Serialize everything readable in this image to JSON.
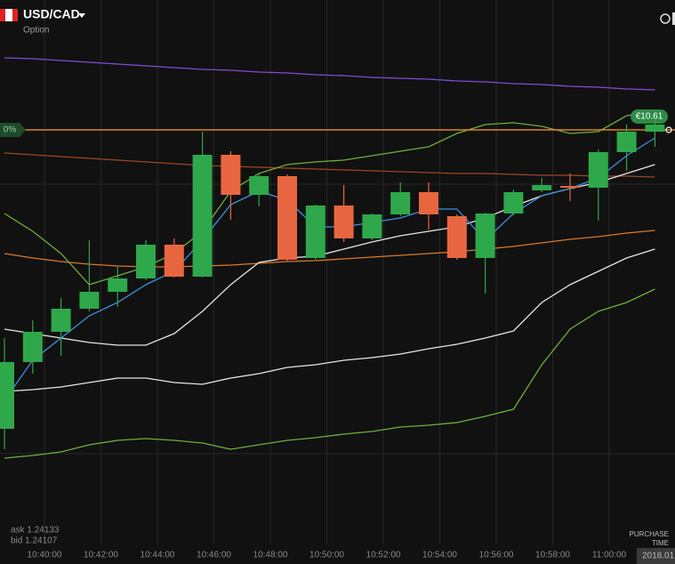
{
  "chart_data": {
    "type": "candlestick",
    "title": "USD/CAD",
    "subtitle": "Option",
    "ylim": [
      1.23635,
      1.2425
    ],
    "open": [
      1.23768,
      1.23843,
      1.23877,
      1.23903,
      1.23922,
      1.23937,
      1.23975,
      1.23939,
      1.24076,
      1.24031,
      1.24052,
      1.2396,
      1.24019,
      1.23982,
      1.24009,
      1.24034,
      1.24007,
      1.2396,
      1.2401,
      1.24036,
      1.24041,
      1.24039,
      1.24079,
      1.24102
    ],
    "high": [
      1.2387,
      1.2389,
      1.23915,
      1.2398,
      1.2395,
      1.2398,
      1.23982,
      1.24102,
      1.2408,
      1.24055,
      1.24054,
      1.2402,
      1.24042,
      1.2401,
      1.24045,
      1.24045,
      1.24009,
      1.24011,
      1.24037,
      1.2405,
      1.24055,
      1.24082,
      1.2411,
      1.24115
    ],
    "low": [
      1.23745,
      1.2383,
      1.2385,
      1.239,
      1.23905,
      1.23935,
      1.23938,
      1.23938,
      1.24003,
      1.24018,
      1.23956,
      1.23958,
      1.23978,
      1.2398,
      1.24007,
      1.23992,
      1.23958,
      1.2392,
      1.24008,
      1.24034,
      1.24024,
      1.24002,
      1.24058,
      1.24085
    ],
    "close": [
      1.23843,
      1.23877,
      1.23903,
      1.23922,
      1.23937,
      1.23975,
      1.23939,
      1.24076,
      1.24031,
      1.24052,
      1.23958,
      1.24019,
      1.23982,
      1.24009,
      1.24034,
      1.24009,
      1.2396,
      1.2401,
      1.24034,
      1.24042,
      1.24039,
      1.24079,
      1.24102,
      1.2411
    ],
    "up_color": "#2ea84a",
    "down_color": "#e8663f",
    "series": [
      {
        "color": "#7b4fd6",
        "values": [
          1.24185,
          1.24184,
          1.24182,
          1.2418,
          1.24178,
          1.24176,
          1.24174,
          1.24172,
          1.24171,
          1.24169,
          1.24168,
          1.24166,
          1.24165,
          1.24163,
          1.24162,
          1.24161,
          1.24159,
          1.24158,
          1.24156,
          1.24155,
          1.24153,
          1.24152,
          1.2415,
          1.24149
        ]
      },
      {
        "color": "#a0461f",
        "values": [
          1.24078,
          1.24076,
          1.24074,
          1.24072,
          1.2407,
          1.24068,
          1.24066,
          1.24064,
          1.24063,
          1.24062,
          1.24061,
          1.2406,
          1.24059,
          1.24058,
          1.24057,
          1.24056,
          1.24055,
          1.24055,
          1.24054,
          1.24053,
          1.24053,
          1.24052,
          1.24052,
          1.24051
        ]
      },
      {
        "color": "#d9792a",
        "values": [
          1.23965,
          1.2396,
          1.23956,
          1.23953,
          1.23951,
          1.2395,
          1.2395,
          1.23951,
          1.23952,
          1.23954,
          1.23956,
          1.23957,
          1.23959,
          1.23961,
          1.23963,
          1.23965,
          1.23967,
          1.2397,
          1.23973,
          1.23977,
          1.23981,
          1.23984,
          1.23988,
          1.23991
        ]
      },
      {
        "color": "#6fae3a",
        "values": [
          1.2401,
          1.2399,
          1.23965,
          1.2393,
          1.2394,
          1.2395,
          1.23965,
          1.2399,
          1.24035,
          1.24055,
          1.24065,
          1.24068,
          1.2407,
          1.24075,
          1.2408,
          1.24085,
          1.241,
          1.2411,
          1.24112,
          1.24108,
          1.241,
          1.24102,
          1.2412,
          1.24125
        ]
      },
      {
        "color": "#e6e6e6",
        "values": [
          1.2388,
          1.23875,
          1.2387,
          1.23865,
          1.23862,
          1.23862,
          1.23875,
          1.239,
          1.2393,
          1.23955,
          1.2396,
          1.23962,
          1.2397,
          1.23978,
          1.23985,
          1.2399,
          1.23995,
          1.24005,
          1.24018,
          1.2403,
          1.24038,
          1.24045,
          1.24055,
          1.24065
        ]
      },
      {
        "color": "#3f8fe0",
        "values": [
          1.238,
          1.23845,
          1.2387,
          1.23895,
          1.2391,
          1.2393,
          1.23945,
          1.2398,
          1.2402,
          1.24035,
          1.24025,
          1.23995,
          1.23995,
          1.24,
          1.24005,
          1.24015,
          1.24015,
          1.2398,
          1.2401,
          1.2403,
          1.24038,
          1.2405,
          1.24075,
          1.24095
        ]
      },
      {
        "color": "#6fae3a",
        "values": [
          1.23735,
          1.23738,
          1.23742,
          1.2375,
          1.23755,
          1.23757,
          1.23755,
          1.23752,
          1.23745,
          1.2375,
          1.23755,
          1.23758,
          1.23762,
          1.23765,
          1.2377,
          1.23772,
          1.23775,
          1.23782,
          1.2379,
          1.2384,
          1.2388,
          1.239,
          1.2391,
          1.23925
        ]
      },
      {
        "color": "#e6e6e6",
        "values": [
          1.2381,
          1.23812,
          1.23815,
          1.2382,
          1.23825,
          1.23825,
          1.2382,
          1.23818,
          1.23825,
          1.2383,
          1.23837,
          1.2384,
          1.23845,
          1.23848,
          1.23852,
          1.23858,
          1.23863,
          1.2387,
          1.23878,
          1.2391,
          1.2393,
          1.23945,
          1.2396,
          1.2397
        ]
      }
    ],
    "level": {
      "value": 1.24104,
      "color": "#d9861e",
      "right_label": "€10.61",
      "left_label": "0%"
    },
    "x_labels": [
      "10:40:00",
      "10:42:00",
      "10:44:00",
      "10:46:00",
      "10:48:00",
      "10:50:00",
      "10:52:00",
      "10:54:00",
      "10:56:00",
      "10:58:00",
      "11:00:00"
    ]
  },
  "footer": {
    "ask": "ask 1.24133",
    "bid": "bid 1.24107",
    "purchase": "PURCHASE",
    "time": "TIME",
    "date": "2018.01"
  }
}
